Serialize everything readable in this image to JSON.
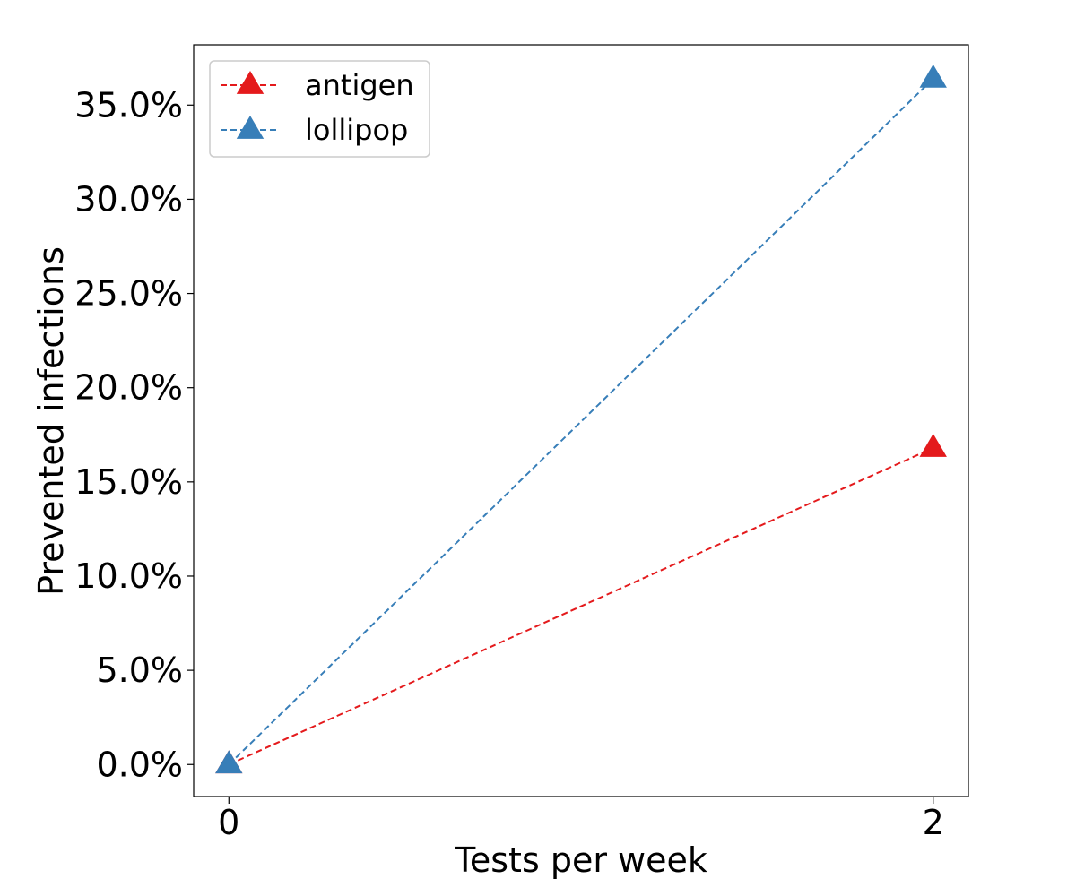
{
  "chart_data": {
    "type": "line",
    "xlabel": "Tests per week",
    "ylabel": "Prevented infections",
    "x": [
      0,
      2
    ],
    "x_ticks": [
      "0",
      "2"
    ],
    "xlim": [
      -0.1,
      2.1
    ],
    "ylim": [
      -0.017,
      0.382
    ],
    "y_ticks": [
      "0.0%",
      "5.0%",
      "10.0%",
      "15.0%",
      "20.0%",
      "25.0%",
      "30.0%",
      "35.0%"
    ],
    "y_tick_values": [
      0,
      0.05,
      0.1,
      0.15,
      0.2,
      0.25,
      0.3,
      0.35
    ],
    "legend_position": "upper-left",
    "grid": false,
    "series": [
      {
        "name": "antigen",
        "values": [
          0.0,
          0.168
        ],
        "color": "#e41a1c",
        "marker": "triangle-up",
        "line_style": "dashed"
      },
      {
        "name": "lollipop",
        "values": [
          0.0,
          0.364
        ],
        "color": "#377eb8",
        "marker": "triangle-up",
        "line_style": "dashed"
      }
    ]
  }
}
